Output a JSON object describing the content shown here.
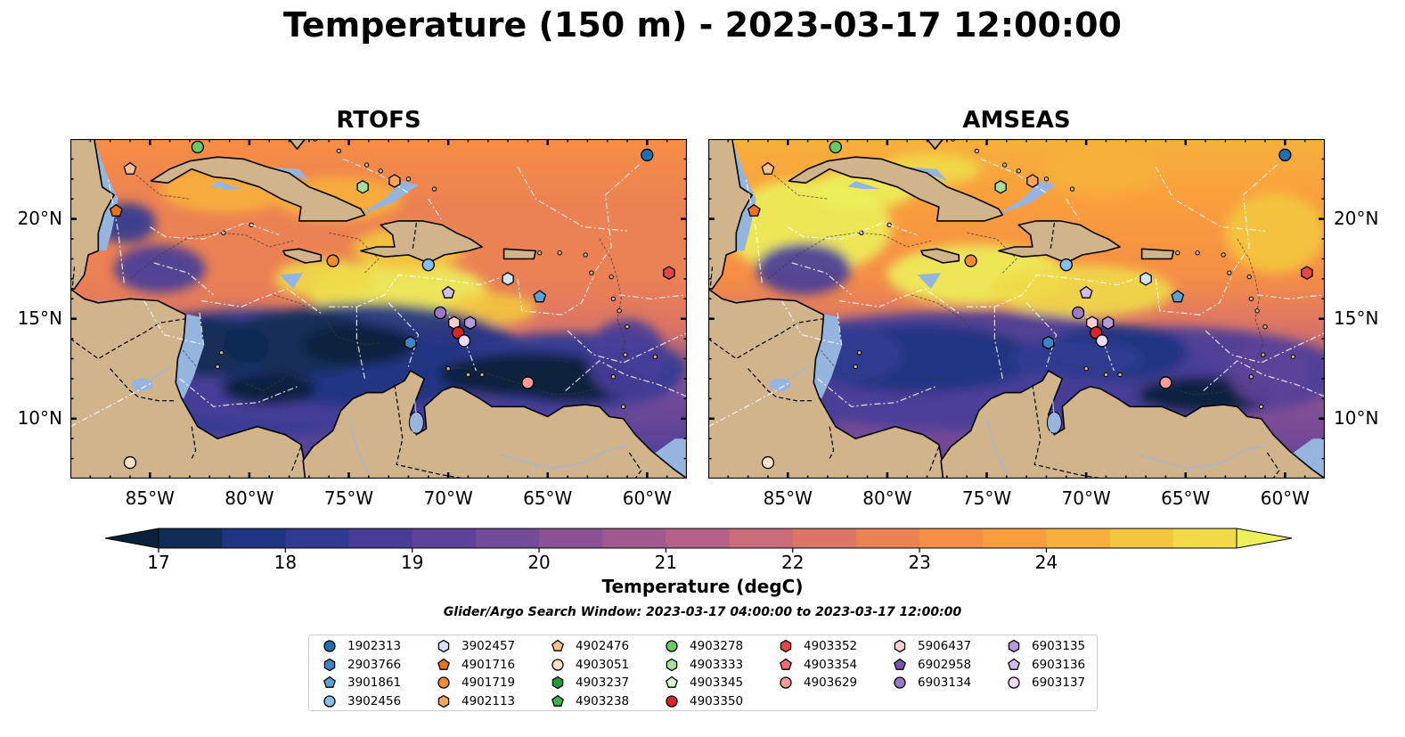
{
  "title": "Temperature (150 m) - 2023-03-17 12:00:00",
  "panels": [
    {
      "title": "RTOFS"
    },
    {
      "title": "AMSEAS"
    }
  ],
  "axes": {
    "lon_ticks": [
      "85°W",
      "80°W",
      "75°W",
      "70°W",
      "65°W",
      "60°W"
    ],
    "lat_ticks": [
      "20°N",
      "15°N",
      "10°N"
    ],
    "lon_range": [
      -89,
      -58
    ],
    "lat_range": [
      7,
      24
    ]
  },
  "colorbar": {
    "title": "Temperature (degC)",
    "tick_labels": [
      "17",
      "18",
      "19",
      "20",
      "21",
      "22",
      "23",
      "24"
    ],
    "min": 16.5,
    "max": 24.5,
    "step": 0.5,
    "colors": [
      "#0a2239",
      "#112c55",
      "#1f3481",
      "#2f3b92",
      "#473d99",
      "#5e4299",
      "#744b98",
      "#8a5294",
      "#a0598f",
      "#b66189",
      "#cb6c7b",
      "#dc7565",
      "#ec8153",
      "#f68e45",
      "#f99d3d",
      "#f8b03c",
      "#f4c63f",
      "#f0da48",
      "#ecf05a"
    ]
  },
  "search_window": "Glider/Argo Search Window: 2023-03-17 04:00:00 to 2023-03-17 12:00:00",
  "legend": {
    "columns": [
      [
        {
          "id": "1902313",
          "marker": "circle",
          "color": "#1f6fb3"
        },
        {
          "id": "2903766",
          "marker": "hexagon",
          "color": "#3a87c6"
        },
        {
          "id": "3901861",
          "marker": "pentagon",
          "color": "#5aa1d6"
        },
        {
          "id": "3902456",
          "marker": "circle",
          "color": "#86bfea"
        }
      ],
      [
        {
          "id": "3902457",
          "marker": "hexagon",
          "color": "#cfe3f5"
        },
        {
          "id": "4901716",
          "marker": "pentagon",
          "color": "#e9721a"
        },
        {
          "id": "4901719",
          "marker": "circle",
          "color": "#f28d2e"
        },
        {
          "id": "4902113",
          "marker": "hexagon",
          "color": "#f8a45a"
        }
      ],
      [
        {
          "id": "4902476",
          "marker": "pentagon",
          "color": "#f9c18e"
        },
        {
          "id": "4903051",
          "marker": "circle",
          "color": "#fde1c4"
        },
        {
          "id": "4903237",
          "marker": "hexagon",
          "color": "#1f9e3c"
        },
        {
          "id": "4903238",
          "marker": "pentagon",
          "color": "#3fb24e"
        }
      ],
      [
        {
          "id": "4903278",
          "marker": "circle",
          "color": "#6cc66a"
        },
        {
          "id": "4903333",
          "marker": "hexagon",
          "color": "#a7df9a"
        },
        {
          "id": "4903345",
          "marker": "pentagon",
          "color": "#d7f2cc"
        },
        {
          "id": "4903350",
          "marker": "circle",
          "color": "#d62728"
        }
      ],
      [
        {
          "id": "4903352",
          "marker": "hexagon",
          "color": "#e04848"
        },
        {
          "id": "4903354",
          "marker": "pentagon",
          "color": "#ee6e6e"
        },
        {
          "id": "4903629",
          "marker": "circle",
          "color": "#f79a9a"
        }
      ],
      [
        {
          "id": "5906437",
          "marker": "hexagon",
          "color": "#fcd0cf"
        },
        {
          "id": "6902958",
          "marker": "pentagon",
          "color": "#7a52b3"
        },
        {
          "id": "6903134",
          "marker": "circle",
          "color": "#9b78c8"
        }
      ],
      [
        {
          "id": "6903135",
          "marker": "hexagon",
          "color": "#b79ad8"
        },
        {
          "id": "6903136",
          "marker": "pentagon",
          "color": "#d4bdeb"
        },
        {
          "id": "6903137",
          "marker": "circle",
          "color": "#eddcf8"
        }
      ]
    ]
  },
  "platforms_on_map": [
    {
      "id": "1902313",
      "lon": -60.0,
      "lat": 23.2
    },
    {
      "id": "4903278",
      "lon": -82.6,
      "lat": 23.6
    },
    {
      "id": "4902476",
      "lon": -86.0,
      "lat": 22.5
    },
    {
      "id": "4901716",
      "lon": -86.7,
      "lat": 20.4
    },
    {
      "id": "4903333",
      "lon": -74.3,
      "lat": 21.6
    },
    {
      "id": "4902113",
      "lon": -72.7,
      "lat": 21.9
    },
    {
      "id": "4901719",
      "lon": -75.8,
      "lat": 17.9
    },
    {
      "id": "3902456",
      "lon": -71.0,
      "lat": 17.7
    },
    {
      "id": "3902457",
      "lon": -67.0,
      "lat": 17.0
    },
    {
      "id": "4903352",
      "lon": -58.9,
      "lat": 17.3
    },
    {
      "id": "3901861",
      "lon": -65.4,
      "lat": 16.1
    },
    {
      "id": "6903136",
      "lon": -70.0,
      "lat": 16.3
    },
    {
      "id": "6903134",
      "lon": -70.4,
      "lat": 15.3
    },
    {
      "id": "5906437",
      "lon": -69.7,
      "lat": 14.8
    },
    {
      "id": "6903135",
      "lon": -68.9,
      "lat": 14.8
    },
    {
      "id": "4903350",
      "lon": -69.5,
      "lat": 14.3
    },
    {
      "id": "6903137",
      "lon": -69.2,
      "lat": 13.9
    },
    {
      "id": "2903766",
      "lon": -71.9,
      "lat": 13.8
    },
    {
      "id": "4903629",
      "lon": -66.0,
      "lat": 11.8
    },
    {
      "id": "4903051",
      "lon": -86.0,
      "lat": 7.8
    }
  ]
}
